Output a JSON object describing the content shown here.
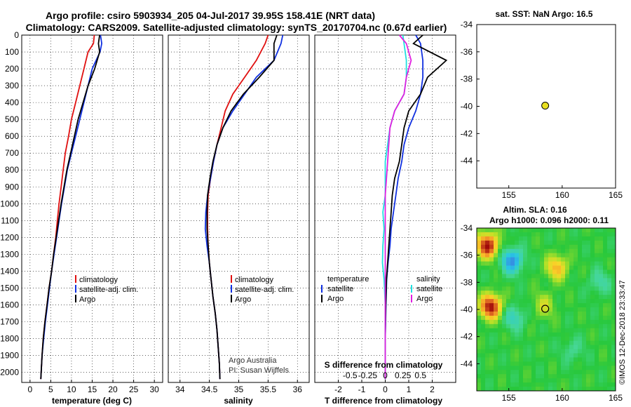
{
  "header": {
    "line1": "Argo profile: csiro 5903934_205 04-Jul-2017 39.95S 158.41E (NRT data)",
    "line2": "Climatology: CARS2009. Satellite-adjusted climatology: synTS_20170704.nc (0.67d earlier)"
  },
  "timestamp": "©IMOS 12-Dec-2018 23:33:47",
  "credit": [
    "Argo Australia",
    "PI: Susan Wijffels"
  ],
  "colors": {
    "climatology": "#e01010",
    "satellite": "#1030e0",
    "argo": "#000000",
    "satellite_s": "#20e0e0",
    "argo_s": "#e020e0",
    "marker": "#e8e020"
  },
  "chart_data": [
    {
      "type": "line",
      "id": "temperature",
      "xlabel": "temperature (deg C)",
      "ylabel": "",
      "xlim": [
        -2,
        32
      ],
      "ylim": [
        2060,
        0
      ],
      "xticks": [
        0,
        5,
        10,
        15,
        20,
        25,
        30
      ],
      "yticks": [
        0,
        100,
        200,
        300,
        400,
        500,
        600,
        700,
        800,
        900,
        1000,
        1100,
        1200,
        1300,
        1400,
        1500,
        1600,
        1700,
        1800,
        1900,
        2000
      ],
      "grid": true,
      "legend": [
        "climatology",
        "satellite-adj. clim.",
        "Argo"
      ],
      "legend_position": "lower-right",
      "series": [
        {
          "name": "climatology",
          "color": "#e01010",
          "x": [
            15.5,
            15.3,
            14.0,
            13.0,
            12.0,
            11.0,
            10.0,
            9.3,
            8.5,
            8.0,
            7.5,
            7.0,
            6.6,
            6.2,
            5.7,
            5.2,
            4.6,
            4.1,
            3.6,
            3.2,
            2.9,
            2.6
          ],
          "y": [
            0,
            50,
            100,
            200,
            300,
            400,
            500,
            600,
            700,
            800,
            900,
            1000,
            1100,
            1200,
            1300,
            1400,
            1500,
            1600,
            1700,
            1800,
            1900,
            2040
          ]
        },
        {
          "name": "satellite-adj. clim.",
          "color": "#1030e0",
          "x": [
            17.0,
            17.3,
            16.9,
            15.0,
            14.0,
            13.0,
            12.0,
            11.0,
            10.0,
            9.0,
            8.3,
            7.6,
            7.0,
            6.4,
            5.8,
            5.2,
            4.7,
            4.2,
            3.7,
            3.3,
            2.9,
            2.6
          ],
          "y": [
            0,
            50,
            100,
            200,
            300,
            400,
            500,
            600,
            700,
            800,
            900,
            1000,
            1100,
            1200,
            1300,
            1400,
            1500,
            1600,
            1700,
            1800,
            1900,
            2040
          ]
        },
        {
          "name": "Argo",
          "color": "#000000",
          "x": [
            16.8,
            16.5,
            16.8,
            15.6,
            14.0,
            12.8,
            11.6,
            10.7,
            9.8,
            8.9,
            8.2,
            7.5,
            6.9,
            6.3,
            5.7,
            5.2,
            4.6,
            4.1,
            3.6,
            3.2,
            2.9,
            2.6
          ],
          "y": [
            0,
            50,
            100,
            200,
            300,
            400,
            500,
            600,
            700,
            800,
            900,
            1000,
            1100,
            1200,
            1300,
            1400,
            1500,
            1600,
            1700,
            1800,
            1900,
            2040
          ]
        }
      ]
    },
    {
      "type": "line",
      "id": "salinity",
      "xlabel": "salinity",
      "xlim": [
        33.8,
        36.2
      ],
      "ylim": [
        2060,
        0
      ],
      "xticks": [
        34,
        34.5,
        35,
        35.5,
        36
      ],
      "grid": true,
      "legend": [
        "climatology",
        "satellite-adj. clim.",
        "Argo"
      ],
      "legend_position": "lower-right",
      "series": [
        {
          "name": "climatology",
          "color": "#e01010",
          "x": [
            35.5,
            35.45,
            35.3,
            35.1,
            34.9,
            34.77,
            34.7,
            34.63,
            34.57,
            34.52,
            34.48,
            34.47,
            34.47,
            34.48,
            34.5,
            34.53,
            34.56,
            34.6,
            34.63,
            34.65,
            34.67,
            34.68
          ],
          "y": [
            0,
            50,
            150,
            250,
            350,
            450,
            550,
            650,
            750,
            850,
            950,
            1050,
            1150,
            1250,
            1350,
            1450,
            1550,
            1650,
            1750,
            1850,
            1950,
            2040
          ]
        },
        {
          "name": "satellite-adj. clim.",
          "color": "#1030e0",
          "x": [
            35.75,
            35.72,
            35.6,
            35.3,
            35.1,
            34.9,
            34.73,
            34.63,
            34.57,
            34.52,
            34.47,
            34.44,
            34.43,
            34.46,
            34.5,
            34.53,
            34.56,
            34.6,
            34.63,
            34.65,
            34.67,
            34.68
          ],
          "y": [
            0,
            50,
            150,
            250,
            350,
            450,
            550,
            650,
            750,
            850,
            950,
            1050,
            1150,
            1250,
            1350,
            1450,
            1550,
            1650,
            1750,
            1850,
            1950,
            2040
          ]
        },
        {
          "name": "Argo",
          "color": "#000000",
          "x": [
            35.65,
            35.6,
            35.6,
            35.35,
            35.08,
            34.87,
            34.73,
            34.63,
            34.56,
            34.51,
            34.47,
            34.46,
            34.46,
            34.48,
            34.5,
            34.53,
            34.56,
            34.6,
            34.63,
            34.65,
            34.67,
            34.68
          ],
          "y": [
            0,
            50,
            150,
            250,
            350,
            450,
            550,
            650,
            750,
            850,
            950,
            1050,
            1150,
            1250,
            1350,
            1450,
            1550,
            1650,
            1750,
            1850,
            1950,
            2040
          ]
        }
      ]
    },
    {
      "type": "line",
      "id": "differences",
      "xlabel": "T difference from climatology",
      "xlabel2": "S difference from climatology",
      "xlim": [
        -3,
        3
      ],
      "ylim": [
        2060,
        0
      ],
      "xticks": [
        -2,
        -1,
        0,
        1,
        2
      ],
      "xticks2": [
        "-0.5",
        "-0.25",
        "0",
        "0.25",
        "0.5"
      ],
      "grid": true,
      "legend_title_left": "temperature",
      "legend_title_right": "salinity",
      "legend_left": [
        "satellite",
        "Argo"
      ],
      "legend_right": [
        "satellite",
        "Argo"
      ],
      "series": [
        {
          "name": "satellite",
          "group": "temperature",
          "color": "#1030e0",
          "x": [
            1.3,
            1.5,
            1.6,
            1.6,
            1.5,
            1.3,
            1.0,
            0.8,
            0.7,
            0.55,
            0.45,
            0.35,
            0.25,
            0.2,
            0.12,
            0.06,
            0.03,
            0.0,
            0.0
          ],
          "y": [
            0,
            50,
            150,
            250,
            350,
            450,
            550,
            650,
            750,
            850,
            950,
            1050,
            1150,
            1250,
            1350,
            1450,
            1600,
            1800,
            2040
          ]
        },
        {
          "name": "Argo",
          "group": "temperature",
          "color": "#000000",
          "x": [
            1.6,
            1.2,
            2.6,
            1.8,
            1.5,
            1.0,
            0.8,
            0.7,
            0.6,
            0.4,
            0.3,
            0.25,
            0.2,
            0.15,
            0.1,
            0.05,
            0.02,
            0.0,
            0.0
          ],
          "y": [
            0,
            50,
            150,
            250,
            350,
            450,
            550,
            650,
            750,
            850,
            950,
            1050,
            1150,
            1250,
            1350,
            1450,
            1600,
            1800,
            2040
          ]
        },
        {
          "name": "satellite",
          "group": "salinity",
          "color": "#20e0e0",
          "x": [
            0.75,
            0.8,
            0.9,
            0.9,
            0.8,
            0.4,
            0.2,
            0.1,
            0.0,
            0.0,
            0.0,
            -0.1,
            -0.05,
            -0.1,
            -0.12,
            -0.05,
            0.0,
            0.0,
            0.0
          ],
          "y": [
            0,
            50,
            150,
            250,
            350,
            450,
            550,
            650,
            750,
            850,
            950,
            1050,
            1150,
            1250,
            1350,
            1450,
            1600,
            1800,
            2040
          ]
        },
        {
          "name": "Argo",
          "group": "salinity",
          "color": "#e020e0",
          "x": [
            0.6,
            0.9,
            1.1,
            0.9,
            0.8,
            0.4,
            0.2,
            0.15,
            0.1,
            0.05,
            0.0,
            0.0,
            0.0,
            0.0,
            0.0,
            0.0,
            0.0,
            0.0,
            0.0
          ],
          "y": [
            0,
            50,
            150,
            250,
            350,
            450,
            550,
            650,
            750,
            850,
            950,
            1050,
            1150,
            1250,
            1350,
            1450,
            1600,
            1800,
            2040
          ]
        }
      ]
    },
    {
      "type": "scatter",
      "id": "sst_map",
      "title": "sat. SST: NaN Argo: 16.5",
      "xlim": [
        152,
        165
      ],
      "ylim": [
        -46,
        -34
      ],
      "xticks": [
        155,
        160,
        165
      ],
      "yticks": [
        -34,
        -36,
        -38,
        -40,
        -42,
        -44
      ],
      "points": [
        {
          "x": 158.41,
          "y": -39.95
        }
      ]
    },
    {
      "type": "heatmap",
      "id": "sla_map",
      "title": "Altim. SLA: 0.16",
      "subtitle": "Argo h1000: 0.096 h2000: 0.11",
      "xlim": [
        152,
        165
      ],
      "ylim": [
        -46,
        -34
      ],
      "xticks": [
        155,
        160,
        165
      ],
      "yticks": [
        -34,
        -36,
        -38,
        -40,
        -42,
        -44
      ],
      "points": [
        {
          "x": 158.41,
          "y": -39.95
        }
      ],
      "anomalies": [
        {
          "x": 153.0,
          "y": -35.3,
          "amp": 1.0
        },
        {
          "x": 155.3,
          "y": -36.4,
          "amp": -0.7
        },
        {
          "x": 159.5,
          "y": -36.9,
          "amp": 0.55
        },
        {
          "x": 153.3,
          "y": -39.8,
          "amp": 1.0
        },
        {
          "x": 155.5,
          "y": -40.6,
          "amp": -0.35
        },
        {
          "x": 158.3,
          "y": -39.7,
          "amp": 0.3
        },
        {
          "x": 163.5,
          "y": -38.0,
          "amp": -0.25
        },
        {
          "x": 161.0,
          "y": -43.0,
          "amp": -0.2
        }
      ]
    }
  ]
}
